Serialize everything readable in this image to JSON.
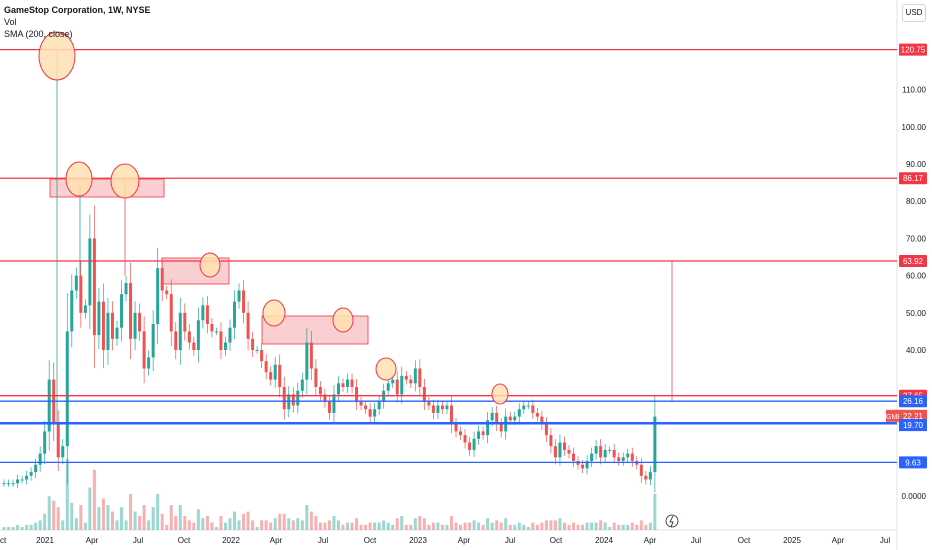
{
  "header": {
    "symbol_line": "GameStop Corporation, 1W, NYSE",
    "indicator_vol": "Vol",
    "indicator_sma": "SMA (200, close)",
    "currency_button": "USD"
  },
  "colors": {
    "up": "#26a69a",
    "down": "#ef5350",
    "level_red": "#f23645",
    "level_blue": "#2962ff",
    "zone_fill": "#f8bbbf",
    "circle_fill": "#ffe0b2",
    "circle_stroke": "#f23645"
  },
  "chart_data": {
    "type": "candlestick",
    "title": "GameStop Corporation, 1W, NYSE",
    "y_axis_ticks": [
      "110.00",
      "100.00",
      "90.00",
      "80.00",
      "70.00",
      "60.00",
      "50.00",
      "40.00",
      "0.0000"
    ],
    "x_axis_ticks": [
      "Oct",
      "2021",
      "Apr",
      "Jul",
      "Oct",
      "2022",
      "Apr",
      "Jul",
      "Oct",
      "2023",
      "Apr",
      "Jul",
      "Oct",
      "2024",
      "Apr",
      "Jul",
      "Oct",
      "2025",
      "Apr",
      "Jul"
    ],
    "levels": [
      {
        "value": 120.75,
        "label": "120.75",
        "color": "red"
      },
      {
        "value": 86.17,
        "label": "86.17",
        "color": "red"
      },
      {
        "value": 63.92,
        "label": "63.92",
        "color": "red"
      },
      {
        "value": 27.65,
        "label": "27.65",
        "color": "red"
      },
      {
        "value": 26.16,
        "label": "26.16",
        "color": "blue"
      },
      {
        "value": 20.2,
        "label": "20.20",
        "color": "blue"
      },
      {
        "value": 9.63,
        "label": "9.63",
        "color": "blue"
      }
    ],
    "price_tags": [
      {
        "ticker": "GME",
        "value": 22.21,
        "label": "22.21"
      },
      {
        "value": 19.7,
        "label": "19.70"
      }
    ],
    "weekly_closes": [
      4,
      4,
      4,
      5,
      5,
      6,
      7,
      9,
      12,
      18,
      32,
      20,
      11,
      14,
      45,
      56,
      60,
      50,
      52,
      70,
      44,
      53,
      40,
      50,
      43,
      46,
      55,
      58,
      43,
      50,
      45,
      35,
      38,
      47,
      62,
      56,
      55,
      45,
      40,
      50,
      45,
      42,
      40,
      48,
      52,
      47,
      45,
      45,
      40,
      42,
      46,
      53,
      56,
      50,
      43,
      40,
      40,
      37,
      34,
      32,
      36,
      30,
      24,
      28,
      25,
      29,
      32,
      42,
      35,
      30,
      28,
      26,
      23,
      28,
      31,
      30,
      32,
      30,
      26,
      25,
      24,
      22,
      24,
      26,
      29,
      31,
      32,
      28,
      33,
      32,
      31,
      35,
      30,
      26,
      25,
      23,
      25,
      24,
      25,
      20,
      18,
      17,
      15,
      13,
      16,
      18,
      17,
      21,
      23,
      20,
      18,
      22,
      21,
      22,
      24,
      25,
      25,
      23,
      22,
      20,
      17,
      14,
      11,
      15,
      13,
      12,
      10,
      9,
      8,
      10,
      12,
      14,
      11,
      13,
      13,
      11,
      10,
      11,
      12,
      10,
      9,
      6,
      5,
      7,
      22
    ],
    "annotations": {
      "circles": 9,
      "zones": 3
    }
  }
}
